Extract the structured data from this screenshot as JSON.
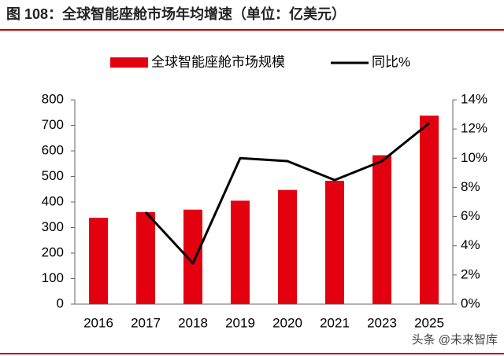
{
  "chart_data": {
    "type": "bar_line",
    "title": "图 108：全球智能座舱市场年均增速（单位：亿美元）",
    "watermark": "头条 @未来智库",
    "categories": [
      "2016",
      "2017",
      "2018",
      "2019",
      "2020",
      "2021",
      "2023",
      "2025"
    ],
    "series": [
      {
        "name": "全球智能座舱市场规模",
        "color": "#e3000f",
        "values": [
          338,
          360,
          370,
          405,
          447,
          483,
          583,
          738
        ]
      },
      {
        "name": "同比%",
        "color": "#000000",
        "axis": "y2",
        "values": [
          null,
          6.3,
          2.8,
          10.0,
          9.8,
          8.5,
          9.8,
          12.4
        ]
      }
    ],
    "ylim": [
      0,
      800
    ],
    "yticks": [
      0,
      100,
      200,
      300,
      400,
      500,
      600,
      700,
      800
    ],
    "y2lim": [
      0,
      14
    ],
    "y2ticks": [
      {
        "value": 0,
        "label": "0%"
      },
      {
        "value": 2,
        "label": "2%"
      },
      {
        "value": 4,
        "label": "4%"
      },
      {
        "value": 6,
        "label": "6%"
      },
      {
        "value": 8,
        "label": "8%"
      },
      {
        "value": 10,
        "label": "10%"
      },
      {
        "value": 12,
        "label": "12%"
      },
      {
        "value": 14,
        "label": "14%"
      }
    ],
    "legend": "top"
  }
}
